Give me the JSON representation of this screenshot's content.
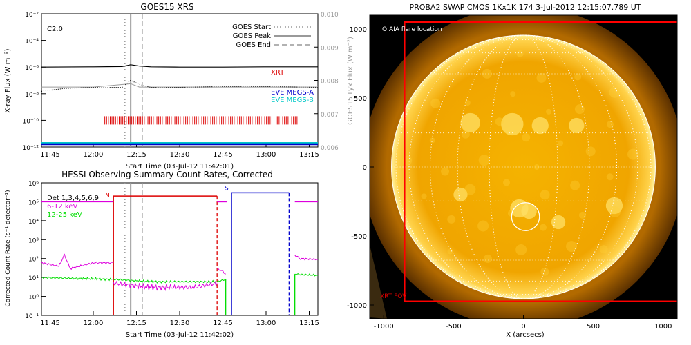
{
  "colors": {
    "goes_long": "#000000",
    "goes_short": "#000000",
    "eve_a": "#0000cc",
    "eve_b": "#00c8c8",
    "lyx": "#999999",
    "xrt": "#dd0000",
    "hessi_det": "#dd0000",
    "hessi_6_12": "#dd00dd",
    "hessi_12_25": "#00dd00",
    "attenuator_s": "#0000cc",
    "marker": "#999999",
    "sun_bright": "#ffee80",
    "sun_mid": "#f2a800",
    "sun_dark": "#b86a00"
  },
  "chart_data": [
    {
      "type": "line",
      "title": "GOES15 XRS",
      "xlabel": "Start Time (03-Jul-12 11:42:01)",
      "ylabel": "X-ray Flux (W m⁻²)",
      "y2label": "GOES15 Lyx Flux (W m⁻²)",
      "xlim": [
        "11:42",
        "13:18"
      ],
      "xticks": [
        "11:45",
        "12:00",
        "12:15",
        "12:30",
        "12:45",
        "13:00",
        "13:15"
      ],
      "ylim": [
        1e-12,
        0.01
      ],
      "yscale": "log",
      "yticks": [
        "10⁻¹²",
        "10⁻¹⁰",
        "10⁻⁸",
        "10⁻⁶",
        "10⁻⁴",
        "10⁻²"
      ],
      "y2lim": [
        0.006,
        0.01
      ],
      "y2ticks": [
        "0.006",
        "0.007",
        "0.008",
        "0.009",
        "0.010"
      ],
      "flare_class": "C2.0",
      "legend": [
        {
          "label": "GOES Start",
          "style": "dotted"
        },
        {
          "label": "GOES Peak",
          "style": "solid"
        },
        {
          "label": "GOES End",
          "style": "dashed"
        }
      ],
      "markers": {
        "start": "12:11",
        "peak": "12:13",
        "end": "12:17"
      },
      "series_labels": {
        "xrt": "XRT",
        "eve_a": "EVE MEGS-A",
        "eve_b": "EVE MEGS-B"
      },
      "series": [
        {
          "key": "long",
          "x": [
            "11:42",
            "12:00",
            "12:10",
            "12:13",
            "12:16",
            "12:20",
            "12:30",
            "12:45",
            "13:00",
            "13:18"
          ],
          "y": [
            1e-06,
            1.05e-06,
            1.1e-06,
            1.5e-06,
            1.2e-06,
            1.05e-06,
            1e-06,
            1e-06,
            1.05e-06,
            1.05e-06
          ]
        },
        {
          "key": "short",
          "x": [
            "11:42",
            "11:50",
            "12:00",
            "12:10",
            "12:13",
            "12:16",
            "12:20",
            "12:30",
            "12:45",
            "13:00",
            "13:18"
          ],
          "y": [
            1.5e-08,
            2.5e-08,
            3e-08,
            3e-08,
            1e-07,
            5e-08,
            3e-08,
            3e-08,
            3.5e-08,
            3.5e-08,
            3e-08
          ]
        },
        {
          "key": "lyx",
          "x": [
            "11:42",
            "12:00",
            "12:13",
            "12:16",
            "12:30",
            "13:00",
            "13:18"
          ],
          "y": [
            0.0078,
            0.0078,
            0.0079,
            0.0078,
            0.0078,
            0.0078,
            0.0078
          ]
        }
      ],
      "xrt_obs": {
        "start": "12:04",
        "end": "13:11",
        "level": 1e-10
      }
    },
    {
      "type": "line",
      "title": "HESSI Observing Summary Count Rates, Corrected",
      "xlabel": "Start Time (03-Jul-12 11:42:02)",
      "ylabel": "Corrected Count Rate (s⁻¹ detector⁻¹)",
      "xlim": [
        "11:42",
        "13:18"
      ],
      "xticks": [
        "11:45",
        "12:00",
        "12:15",
        "12:30",
        "12:45",
        "13:00",
        "13:15"
      ],
      "ylim": [
        0.1,
        1000000.0
      ],
      "yscale": "log",
      "yticks": [
        "10⁻¹",
        "10⁰",
        "10¹",
        "10²",
        "10³",
        "10⁴",
        "10⁵",
        "10⁶"
      ],
      "legend": [
        {
          "label": "Det 1,3,4,5,6,9",
          "key": "det"
        },
        {
          "label": "6-12 keV",
          "key": "6_12"
        },
        {
          "label": "12-25 keV",
          "key": "12_25"
        }
      ],
      "flags": {
        "N": "N",
        "S": "S"
      },
      "markers": {
        "start": "12:11",
        "peak": "12:13",
        "end": "12:17"
      },
      "night_start": "12:07",
      "night_end": "12:43",
      "saa_start": "12:48",
      "saa_end": "13:08",
      "series": [
        {
          "key": "6_12",
          "x": [
            "11:42",
            "11:48",
            "11:50",
            "11:52",
            "12:00",
            "12:07"
          ],
          "y": [
            60,
            40,
            150,
            30,
            60,
            60
          ]
        },
        {
          "key": "6_12b",
          "x": [
            "12:07",
            "12:20",
            "12:35",
            "12:43"
          ],
          "y": [
            5,
            3,
            3,
            5
          ]
        },
        {
          "key": "6_12c",
          "x": [
            "12:43",
            "12:45",
            "12:46"
          ],
          "y": [
            30,
            20,
            15
          ]
        },
        {
          "key": "6_12d",
          "x": [
            "13:10",
            "13:12",
            "13:18"
          ],
          "y": [
            150,
            100,
            90
          ]
        },
        {
          "key": "12_25",
          "x": [
            "11:42",
            "12:07",
            "12:20",
            "12:43",
            "12:46"
          ],
          "y": [
            10,
            8,
            6,
            6,
            8
          ]
        },
        {
          "key": "12_25d",
          "x": [
            "13:10",
            "13:18"
          ],
          "y": [
            15,
            13
          ]
        }
      ]
    }
  ],
  "image_panel": {
    "title": "PROBA2 SWAP CMOS 1Kx1K 174  3-Jul-2012 12:15:07.789 UT",
    "xlabel": "X (arcsecs)",
    "xticks": [
      "-1000",
      "-500",
      "0",
      "500",
      "1000"
    ],
    "yticks": [
      "1000",
      "500",
      "0",
      "-500",
      "-1000"
    ],
    "xlim": [
      -1100,
      1100
    ],
    "ylim": [
      -1100,
      1100
    ],
    "sun_radius": 944,
    "flare_center": [
      15,
      -360
    ],
    "flare_radius": 100,
    "aia_label": "O AIA flare location",
    "xrt_box": {
      "x0": -850,
      "x1": 1150,
      "y0": -950,
      "y1": 1050
    },
    "xrt_label": "XRT FOV"
  }
}
